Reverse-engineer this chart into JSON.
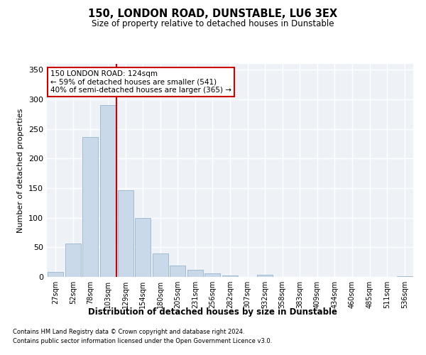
{
  "title": "150, LONDON ROAD, DUNSTABLE, LU6 3EX",
  "subtitle": "Size of property relative to detached houses in Dunstable",
  "xlabel": "Distribution of detached houses by size in Dunstable",
  "ylabel": "Number of detached properties",
  "bar_labels": [
    "27sqm",
    "52sqm",
    "78sqm",
    "103sqm",
    "129sqm",
    "154sqm",
    "180sqm",
    "205sqm",
    "231sqm",
    "256sqm",
    "282sqm",
    "307sqm",
    "332sqm",
    "358sqm",
    "383sqm",
    "409sqm",
    "434sqm",
    "460sqm",
    "485sqm",
    "511sqm",
    "536sqm"
  ],
  "bar_values": [
    8,
    57,
    237,
    291,
    146,
    100,
    40,
    19,
    12,
    6,
    3,
    0,
    4,
    0,
    0,
    0,
    0,
    0,
    0,
    0,
    1
  ],
  "bar_color": "#c9d9ea",
  "bar_edge_color": "#a0bcd4",
  "vline_color": "#cc0000",
  "annotation_text": "150 LONDON ROAD: 124sqm\n← 59% of detached houses are smaller (541)\n40% of semi-detached houses are larger (365) →",
  "annotation_box_color": "#ffffff",
  "annotation_edge_color": "#cc0000",
  "ylim": [
    0,
    360
  ],
  "yticks": [
    0,
    50,
    100,
    150,
    200,
    250,
    300,
    350
  ],
  "bg_color": "#eef2f7",
  "grid_color": "#ffffff",
  "footer1": "Contains HM Land Registry data © Crown copyright and database right 2024.",
  "footer2": "Contains public sector information licensed under the Open Government Licence v3.0."
}
